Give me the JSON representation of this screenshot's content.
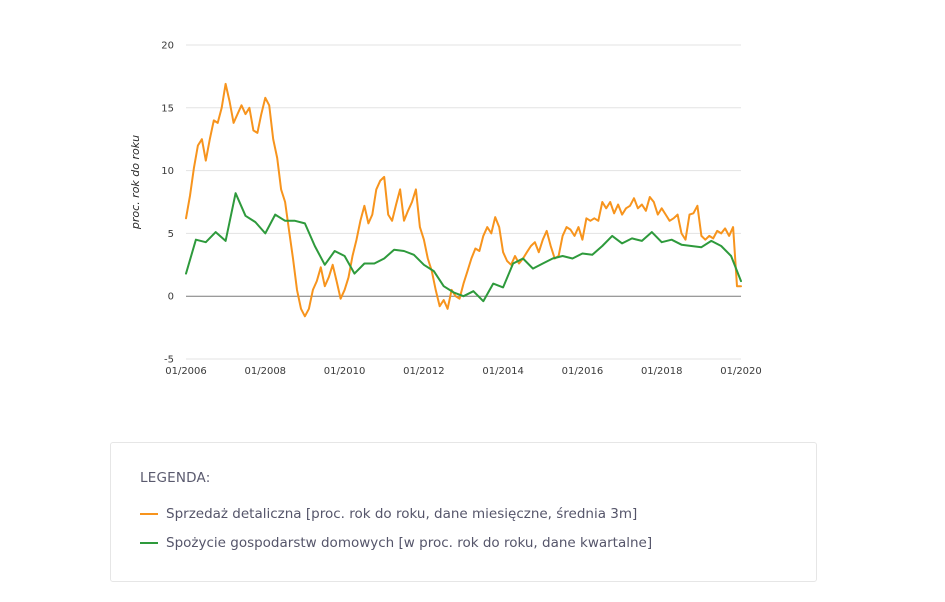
{
  "colors": {
    "retail": "#f7941d",
    "consumption": "#2e9a3c",
    "grid": "#e3e3e3",
    "zero_line": "#7a7a7a"
  },
  "chart_data": {
    "type": "line",
    "ylabel": "proc. rok do roku",
    "ylim": [
      -5,
      20
    ],
    "yticks": [
      -5,
      0,
      5,
      10,
      15,
      20
    ],
    "xlim": [
      2006.0,
      2020.0
    ],
    "xticks": [
      {
        "value": 2006,
        "label": "01/2006"
      },
      {
        "value": 2008,
        "label": "01/2008"
      },
      {
        "value": 2010,
        "label": "01/2010"
      },
      {
        "value": 2012,
        "label": "01/2012"
      },
      {
        "value": 2014,
        "label": "01/2014"
      },
      {
        "value": 2016,
        "label": "01/2016"
      },
      {
        "value": 2018,
        "label": "01/2018"
      },
      {
        "value": 2020,
        "label": "01/2020"
      }
    ],
    "grid": true,
    "series": [
      {
        "name": "Sprzedaż detaliczna [proc. rok do roku, dane miesięczne, średnia 3m]",
        "color": "#f7941d",
        "x": [
          2006.0,
          2006.1,
          2006.2,
          2006.3,
          2006.4,
          2006.5,
          2006.6,
          2006.7,
          2006.8,
          2006.9,
          2007.0,
          2007.1,
          2007.2,
          2007.3,
          2007.4,
          2007.5,
          2007.6,
          2007.7,
          2007.8,
          2007.9,
          2008.0,
          2008.1,
          2008.2,
          2008.3,
          2008.4,
          2008.5,
          2008.6,
          2008.7,
          2008.8,
          2008.9,
          2009.0,
          2009.1,
          2009.2,
          2009.3,
          2009.4,
          2009.5,
          2009.6,
          2009.7,
          2009.8,
          2009.9,
          2010.0,
          2010.1,
          2010.2,
          2010.3,
          2010.4,
          2010.5,
          2010.6,
          2010.7,
          2010.8,
          2010.9,
          2011.0,
          2011.1,
          2011.2,
          2011.3,
          2011.4,
          2011.5,
          2011.6,
          2011.7,
          2011.8,
          2011.9,
          2012.0,
          2012.1,
          2012.2,
          2012.3,
          2012.4,
          2012.5,
          2012.6,
          2012.7,
          2012.8,
          2012.9,
          2013.0,
          2013.1,
          2013.2,
          2013.3,
          2013.4,
          2013.5,
          2013.6,
          2013.7,
          2013.8,
          2013.9,
          2014.0,
          2014.1,
          2014.2,
          2014.3,
          2014.4,
          2014.5,
          2014.6,
          2014.7,
          2014.8,
          2014.9,
          2015.0,
          2015.1,
          2015.2,
          2015.3,
          2015.4,
          2015.5,
          2015.6,
          2015.7,
          2015.8,
          2015.9,
          2016.0,
          2016.1,
          2016.2,
          2016.3,
          2016.4,
          2016.5,
          2016.6,
          2016.7,
          2016.8,
          2016.9,
          2017.0,
          2017.1,
          2017.2,
          2017.3,
          2017.4,
          2017.5,
          2017.6,
          2017.7,
          2017.8,
          2017.9,
          2018.0,
          2018.1,
          2018.2,
          2018.3,
          2018.4,
          2018.5,
          2018.6,
          2018.7,
          2018.8,
          2018.9,
          2019.0,
          2019.1,
          2019.2,
          2019.3,
          2019.4,
          2019.5,
          2019.6,
          2019.7,
          2019.8,
          2019.9,
          2020.0
        ],
        "values": [
          6.2,
          8.0,
          10.2,
          12.0,
          12.5,
          10.8,
          12.5,
          14.0,
          13.8,
          15.0,
          16.9,
          15.5,
          13.8,
          14.5,
          15.2,
          14.5,
          15.0,
          13.2,
          13.0,
          14.5,
          15.8,
          15.2,
          12.5,
          11.0,
          8.5,
          7.5,
          5.2,
          3.0,
          0.5,
          -1.0,
          -1.6,
          -1.0,
          0.5,
          1.2,
          2.3,
          0.8,
          1.5,
          2.5,
          1.2,
          -0.2,
          0.5,
          1.5,
          3.2,
          4.5,
          6.0,
          7.2,
          5.8,
          6.5,
          8.5,
          9.2,
          9.5,
          6.5,
          6.0,
          7.3,
          8.5,
          6.0,
          6.8,
          7.5,
          8.5,
          5.5,
          4.5,
          3.0,
          2.0,
          0.5,
          -0.8,
          -0.3,
          -1.0,
          0.5,
          0.0,
          -0.2,
          1.0,
          2.0,
          3.0,
          3.8,
          3.6,
          4.8,
          5.5,
          5.0,
          6.3,
          5.5,
          3.5,
          2.8,
          2.5,
          3.2,
          2.6,
          3.0,
          3.5,
          4.0,
          4.3,
          3.5,
          4.5,
          5.2,
          4.0,
          3.0,
          3.2,
          4.8,
          5.5,
          5.3,
          4.8,
          5.5,
          4.5,
          6.2,
          6.0,
          6.2,
          6.0,
          7.5,
          7.0,
          7.5,
          6.6,
          7.3,
          6.5,
          7.0,
          7.2,
          7.8,
          7.0,
          7.3,
          6.8,
          7.9,
          7.5,
          6.5,
          7.0,
          6.5,
          6.0,
          6.2,
          6.5,
          5.0,
          4.5,
          6.5,
          6.6,
          7.2,
          4.8,
          4.5,
          4.8,
          4.6,
          5.2,
          5.0,
          5.4,
          4.8,
          5.5,
          0.8,
          0.8
        ]
      },
      {
        "name": "Spożycie gospodarstw domowych [w proc. rok do roku, dane kwartalne]",
        "color": "#2e9a3c",
        "x": [
          2006.0,
          2006.25,
          2006.5,
          2006.75,
          2007.0,
          2007.25,
          2007.5,
          2007.75,
          2008.0,
          2008.25,
          2008.5,
          2008.75,
          2009.0,
          2009.25,
          2009.5,
          2009.75,
          2010.0,
          2010.25,
          2010.5,
          2010.75,
          2011.0,
          2011.25,
          2011.5,
          2011.75,
          2012.0,
          2012.25,
          2012.5,
          2012.75,
          2013.0,
          2013.25,
          2013.5,
          2013.75,
          2014.0,
          2014.25,
          2014.5,
          2014.75,
          2015.0,
          2015.25,
          2015.5,
          2015.75,
          2016.0,
          2016.25,
          2016.5,
          2016.75,
          2017.0,
          2017.25,
          2017.5,
          2017.75,
          2018.0,
          2018.25,
          2018.5,
          2018.75,
          2019.0,
          2019.25,
          2019.5,
          2019.75,
          2020.0
        ],
        "values": [
          1.8,
          4.5,
          4.3,
          5.1,
          4.4,
          8.2,
          6.4,
          5.9,
          5.0,
          6.5,
          6.0,
          6.0,
          5.8,
          4.0,
          2.5,
          3.6,
          3.2,
          1.8,
          2.6,
          2.6,
          3.0,
          3.7,
          3.6,
          3.3,
          2.5,
          2.0,
          0.8,
          0.3,
          0.0,
          0.4,
          -0.4,
          1.0,
          0.7,
          2.6,
          3.0,
          2.2,
          2.6,
          3.0,
          3.2,
          3.0,
          3.4,
          3.3,
          4.0,
          4.8,
          4.2,
          4.6,
          4.4,
          5.1,
          4.3,
          4.5,
          4.1,
          4.0,
          3.9,
          4.4,
          4.0,
          3.2,
          1.2
        ]
      }
    ]
  },
  "legend": {
    "title": "LEGENDA:",
    "items": [
      {
        "label": "Sprzedaż detaliczna [proc. rok do roku, dane miesięczne, średnia 3m]",
        "color": "#f7941d"
      },
      {
        "label": "Spożycie gospodarstw domowych [w proc. rok do roku, dane kwartalne]",
        "color": "#2e9a3c"
      }
    ]
  }
}
